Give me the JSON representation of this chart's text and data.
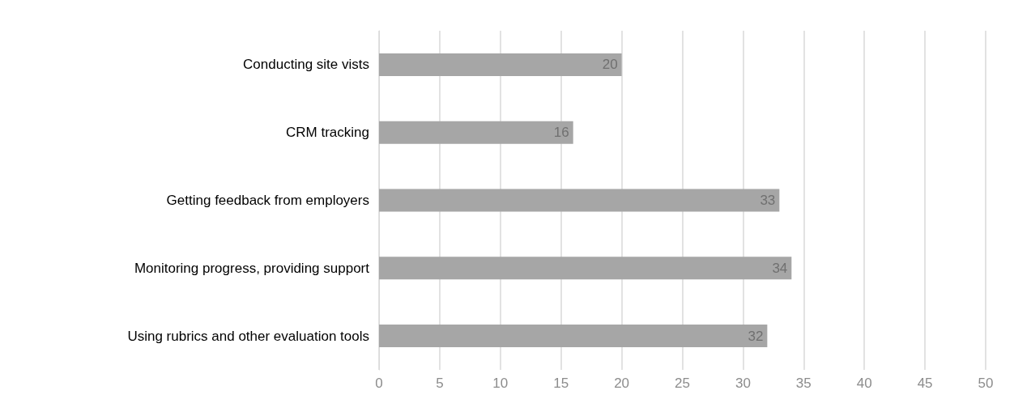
{
  "chart_data": {
    "type": "bar",
    "orientation": "horizontal",
    "categories": [
      "Conducting site vists",
      "CRM tracking",
      "Getting feedback from employers",
      "Monitoring progress, providing support",
      "Using rubrics and other evaluation tools"
    ],
    "values": [
      20,
      16,
      33,
      34,
      32
    ],
    "color": "#a6a6a6",
    "data_labels": true,
    "xlim": [
      0,
      50
    ],
    "xticks": [
      0,
      5,
      10,
      15,
      20,
      25,
      30,
      35,
      40,
      45,
      50
    ],
    "grid": "x"
  }
}
